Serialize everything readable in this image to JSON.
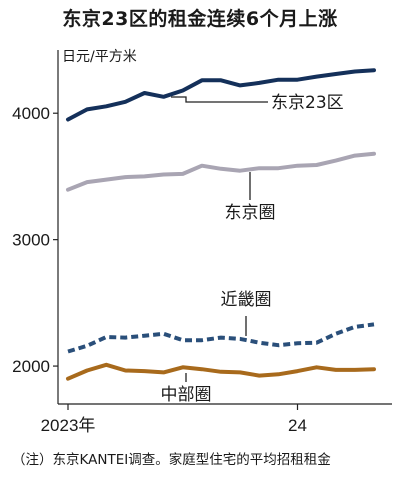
{
  "title": "东京23区的租金连续6个月上涨",
  "unit_label": "日元/平方米",
  "note": "（注）东京KANTEI调查。家庭型住宅的平均招租租金",
  "chart_data": {
    "type": "line",
    "title": "东京23区的租金连续6个月上涨",
    "ylabel": "日元/平方米",
    "xlabel": "",
    "ylim": [
      1700,
      4500
    ],
    "yticks": [
      2000,
      3000,
      4000
    ],
    "x_tick_labels": [
      {
        "label": "2023年",
        "index": 0
      },
      {
        "label": "24",
        "index": 12
      }
    ],
    "x": [
      "2023-01",
      "2023-02",
      "2023-03",
      "2023-04",
      "2023-05",
      "2023-06",
      "2023-07",
      "2023-08",
      "2023-09",
      "2023-10",
      "2023-11",
      "2023-12",
      "2024-01",
      "2024-02",
      "2024-03",
      "2024-04",
      "2024-05"
    ],
    "series": [
      {
        "name": "东京23区",
        "color": "#14305a",
        "dash": false,
        "values": [
          3950,
          4030,
          4055,
          4090,
          4160,
          4130,
          4180,
          4260,
          4260,
          4220,
          4240,
          4265,
          4265,
          4290,
          4310,
          4330,
          4340
        ]
      },
      {
        "name": "东京圈",
        "color": "#a9a5b3",
        "dash": false,
        "values": [
          3395,
          3455,
          3475,
          3495,
          3500,
          3515,
          3520,
          3585,
          3560,
          3545,
          3565,
          3565,
          3585,
          3590,
          3625,
          3665,
          3680
        ]
      },
      {
        "name": "近畿圈",
        "color": "#2a4f7a",
        "dash": true,
        "values": [
          2115,
          2160,
          2230,
          2225,
          2240,
          2255,
          2205,
          2205,
          2225,
          2215,
          2185,
          2165,
          2180,
          2185,
          2255,
          2310,
          2330
        ]
      },
      {
        "name": "中部圈",
        "color": "#a86a1c",
        "dash": false,
        "values": [
          1900,
          1965,
          2010,
          1965,
          1960,
          1950,
          1990,
          1975,
          1955,
          1950,
          1925,
          1935,
          1960,
          1990,
          1970,
          1970,
          1975
        ]
      }
    ]
  }
}
